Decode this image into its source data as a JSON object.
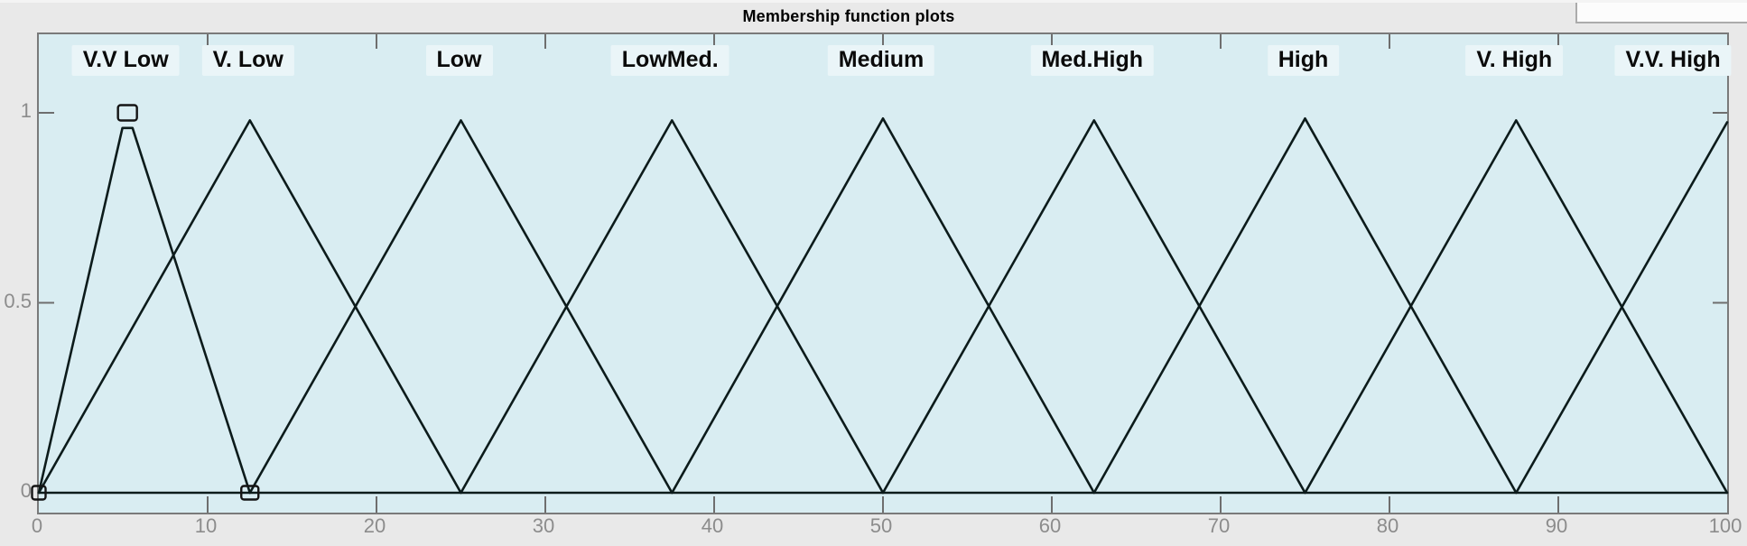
{
  "header": {
    "title": "Membership function plots"
  },
  "colors": {
    "figure_bg": "#e9e9e9",
    "plot_bg": "#d9edf2",
    "curve": "#0c1b1b",
    "axis_border": "#7a7a7a",
    "tick": "#6e6e6e",
    "tick_label": "#8c8c8c",
    "mf_label_bg": "#eaf5f8",
    "handle": "#141414",
    "corner_panel_bg": "#fcfcfc"
  },
  "chart_data": {
    "type": "line",
    "title": "Membership function plots",
    "xlabel": "",
    "ylabel": "",
    "xlim": [
      0,
      100
    ],
    "ylim": [
      -0.05,
      1.2
    ],
    "grid": false,
    "legend_position": "labels above each membership function peak",
    "xticks": [
      0,
      10,
      20,
      30,
      40,
      50,
      60,
      70,
      80,
      90,
      100
    ],
    "yticks": [
      {
        "label": "1",
        "value": 1
      },
      {
        "label": "0.5",
        "value": 0.5
      },
      {
        "label": "0",
        "value": 0
      }
    ],
    "selected_mf": "V.V Low",
    "selection_handles": [
      {
        "x": 0,
        "y": 0,
        "w": 15,
        "h": 15
      },
      {
        "x": 5.25,
        "y": 1,
        "w": 21,
        "h": 17
      },
      {
        "x": 12.5,
        "y": 0,
        "w": 19,
        "h": 15
      }
    ],
    "baseline": {
      "from": 0,
      "to": 100,
      "value": 0
    },
    "series": [
      {
        "name": "V.V Low",
        "label_x": 5.25,
        "points": [
          [
            0,
            0
          ],
          [
            4.95,
            0.96
          ],
          [
            5.55,
            0.96
          ],
          [
            12.5,
            0
          ]
        ]
      },
      {
        "name": "V. Low",
        "label_x": 12.5,
        "points": [
          [
            0,
            0
          ],
          [
            12.5,
            0.98
          ],
          [
            25,
            0
          ]
        ]
      },
      {
        "name": "Low",
        "label_x": 25,
        "points": [
          [
            12.5,
            0
          ],
          [
            25,
            0.98
          ],
          [
            37.5,
            0
          ]
        ]
      },
      {
        "name": "LowMed.",
        "label_x": 37.5,
        "points": [
          [
            25,
            0
          ],
          [
            37.5,
            0.98
          ],
          [
            50,
            0
          ]
        ]
      },
      {
        "name": "Medium",
        "label_x": 50,
        "points": [
          [
            37.5,
            0
          ],
          [
            50,
            0.985
          ],
          [
            62.5,
            0
          ]
        ]
      },
      {
        "name": "Med.High",
        "label_x": 62.5,
        "points": [
          [
            50,
            0
          ],
          [
            62.5,
            0.98
          ],
          [
            75,
            0
          ]
        ]
      },
      {
        "name": "High",
        "label_x": 75,
        "points": [
          [
            62.5,
            0
          ],
          [
            75,
            0.985
          ],
          [
            87.5,
            0
          ]
        ]
      },
      {
        "name": "V. High",
        "label_x": 87.5,
        "points": [
          [
            75,
            0
          ],
          [
            87.5,
            0.98
          ],
          [
            100,
            0
          ]
        ]
      },
      {
        "name": "V.V. High",
        "label_x": 96.9,
        "points": [
          [
            87.5,
            0
          ],
          [
            100,
            0.975
          ]
        ]
      }
    ]
  }
}
